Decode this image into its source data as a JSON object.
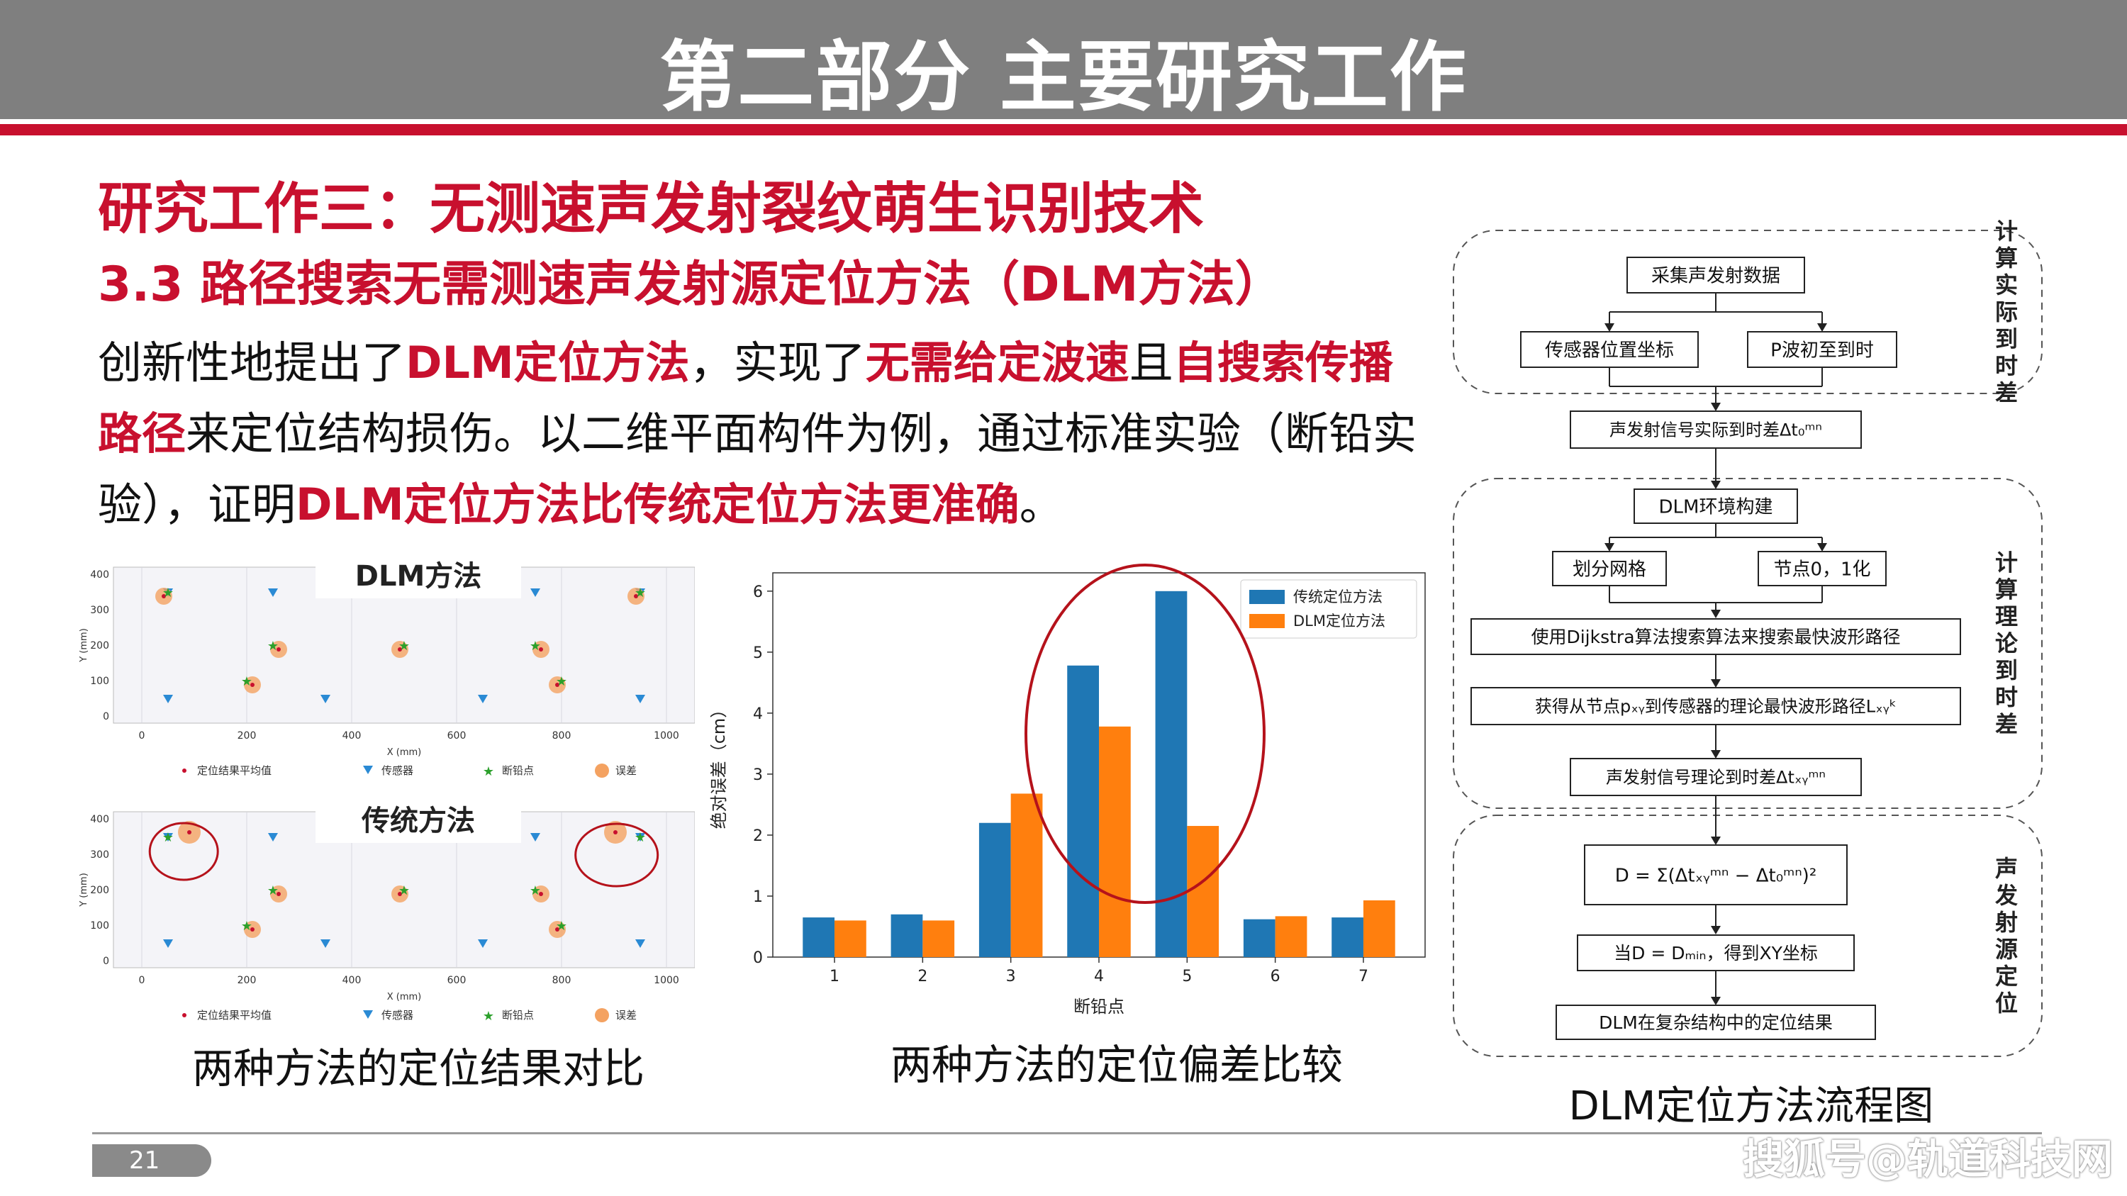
{
  "header": {
    "title": "第二部分 主要研究工作"
  },
  "heading1": "研究工作三：无测速声发射裂纹萌生识别技术",
  "heading2": "3.3 路径搜索无需测速声发射源定位方法（DLM方法）",
  "paragraph": [
    {
      "text": "创新性地提出了",
      "hl": false
    },
    {
      "text": "DLM定位方法",
      "hl": true
    },
    {
      "text": "，实现了",
      "hl": false
    },
    {
      "text": "无需给定波速",
      "hl": true
    },
    {
      "text": "且",
      "hl": false
    },
    {
      "text": "自搜索传播路径",
      "hl": true
    },
    {
      "text": "来定位结构损伤。以二维平面构件为例，通过标准实验（断铅实验），证明",
      "hl": false
    },
    {
      "text": "DLM定位方法比传统定位方法更准确",
      "hl": true
    },
    {
      "text": "。",
      "hl": false
    }
  ],
  "plots": {
    "top_label": "DLM方法",
    "bottom_label": "传统方法",
    "xlabel": "X (mm)",
    "ylabel": "Y (mm)",
    "xticks": [
      "0",
      "200",
      "400",
      "600",
      "800",
      "1000"
    ],
    "yticks": [
      "0",
      "100",
      "200",
      "300",
      "400"
    ],
    "legend": [
      "定位结果平均值",
      "传感器",
      "断铅点",
      "误差"
    ],
    "caption": "两种方法的定位结果对比"
  },
  "chart_data": {
    "type": "bar",
    "categories": [
      "1",
      "2",
      "3",
      "4",
      "5",
      "6",
      "7"
    ],
    "series": [
      {
        "name": "传统定位方法",
        "values": [
          0.65,
          0.7,
          2.2,
          4.78,
          6.0,
          0.62,
          0.65
        ],
        "color": "#1f77b4"
      },
      {
        "name": "DLM定位方法",
        "values": [
          0.6,
          0.6,
          2.68,
          3.78,
          2.15,
          0.67,
          0.93
        ],
        "color": "#ff7f0e"
      }
    ],
    "xlabel": "断铅点",
    "ylabel": "绝对误差（cm）",
    "ylim": [
      0,
      6.3
    ],
    "yticks": [
      "0",
      "1",
      "2",
      "3",
      "4",
      "5",
      "6"
    ],
    "legend_position": "top-right",
    "grid": false,
    "caption": "两种方法的定位偏差比较"
  },
  "flowchart": {
    "group_labels": [
      "计算实际到时差",
      "计算理论到时差",
      "声发射源定位"
    ],
    "nodes": {
      "collect": "采集声发射数据",
      "sensor_pos": "传感器位置坐标",
      "p_arrival": "P波初至到时",
      "actual_diff": "声发射信号实际到时差Δt₀ᵐⁿ",
      "env": "DLM环境构建",
      "grid": "划分网格",
      "node01": "节点0，1化",
      "dijkstra": "使用Dijkstra算法搜索算法来搜索最快波形路径",
      "path": "获得从节点pₓᵧ到传感器的理论最快波形路径Lₓᵧᵏ",
      "theory_diff": "声发射信号理论到时差Δtₓᵧᵐⁿ",
      "formula": "D = Σ(Δtₓᵧᵐⁿ − Δt₀ᵐⁿ)²",
      "min": "当D = Dₘᵢₙ，得到XY坐标",
      "result": "DLM在复杂结构中的定位结果"
    },
    "caption": "DLM定位方法流程图"
  },
  "footer": {
    "page_number": "21",
    "watermark": "搜狐号@轨道科技网"
  }
}
